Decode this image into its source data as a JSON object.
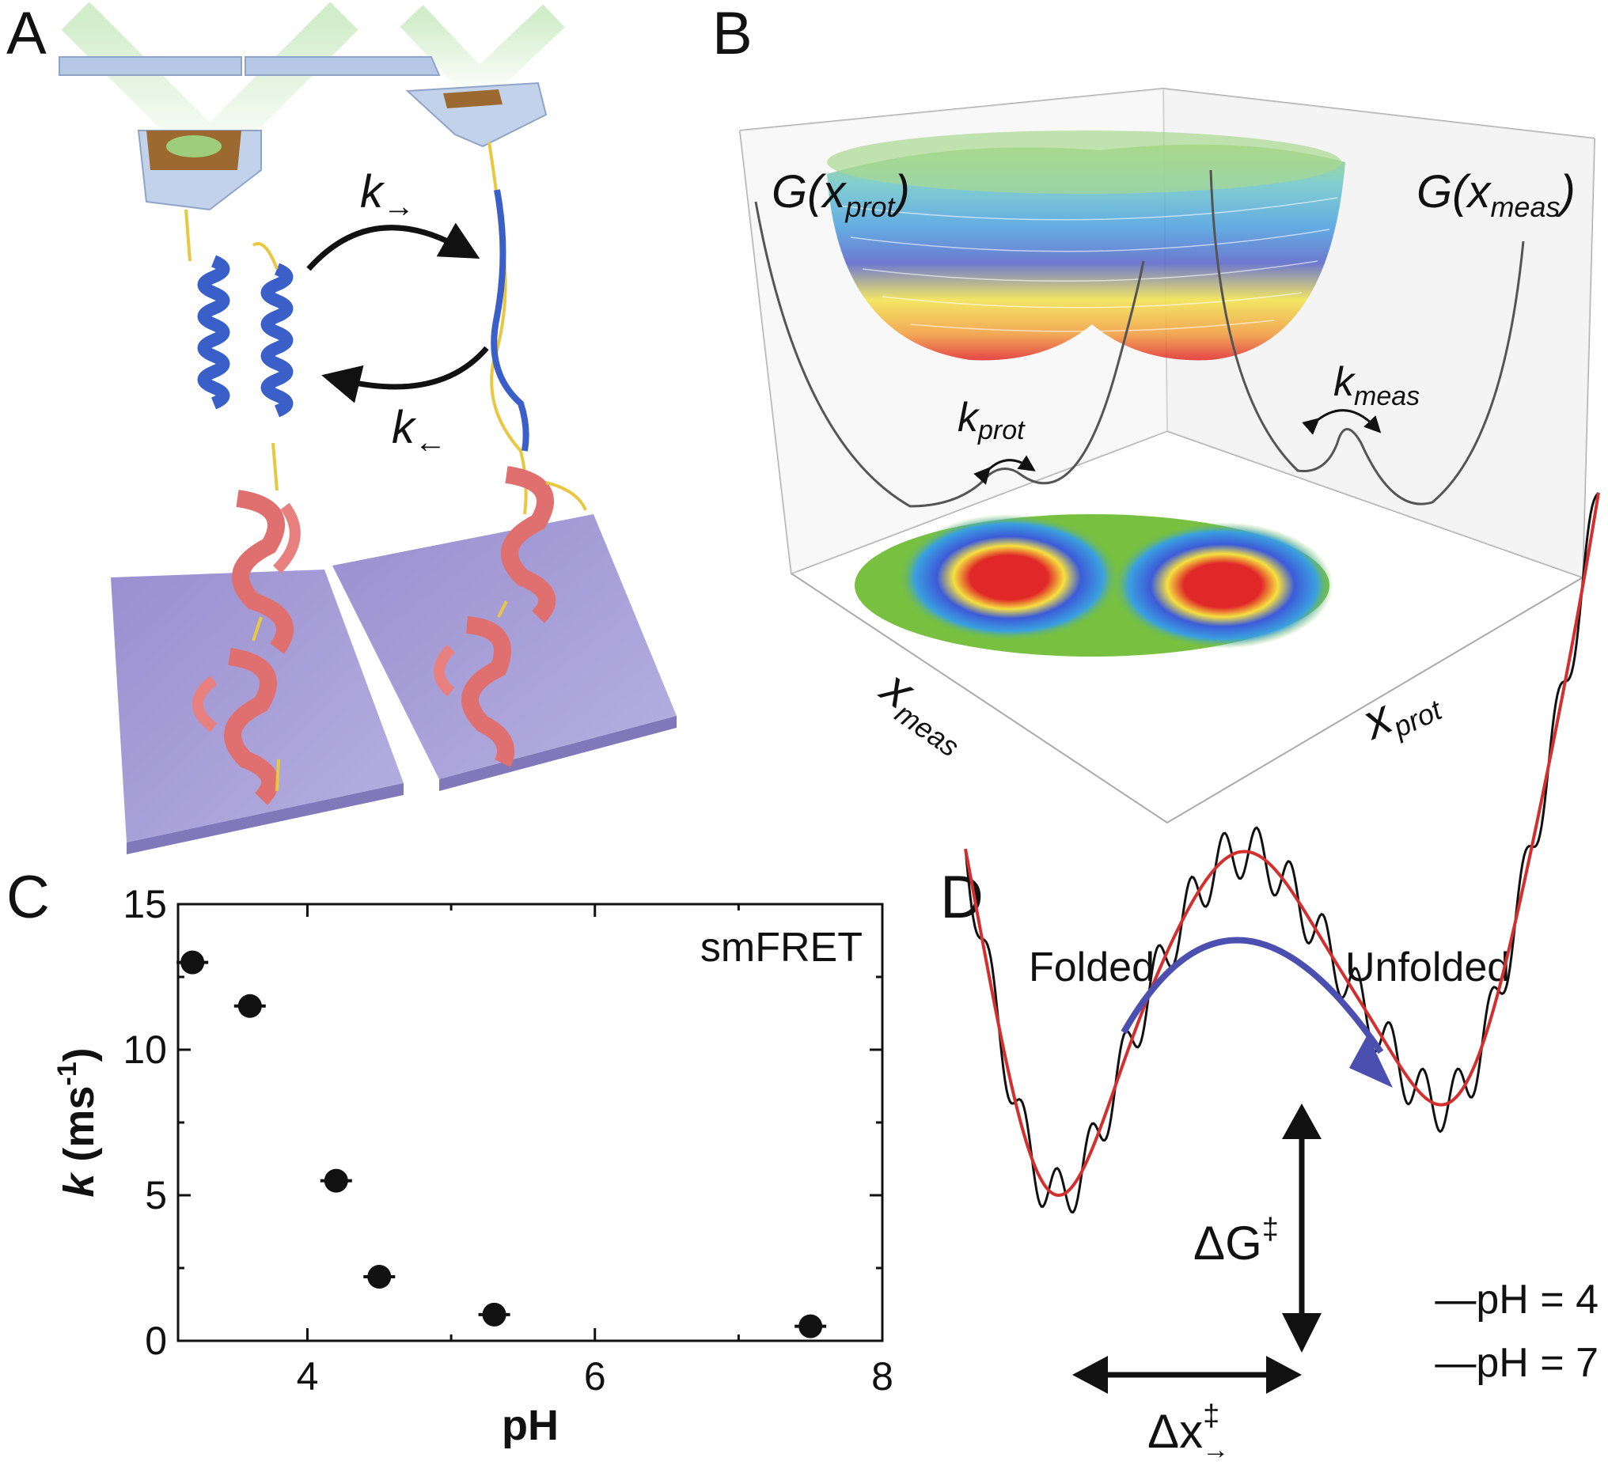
{
  "panels": {
    "a": {
      "letter": "A",
      "k_forward": "k",
      "k_forward_sub": "→",
      "k_backward": "k",
      "k_backward_sub": "←"
    },
    "b": {
      "letter": "B",
      "g_prot": "G(x",
      "g_prot_sub": "prot",
      "g_prot_close": ")",
      "g_meas": "G(x",
      "g_meas_sub": "meas",
      "g_meas_close": ")",
      "k_prot": "k",
      "k_prot_sub": "prot",
      "k_meas": "k",
      "k_meas_sub": "meas",
      "x_meas": "x",
      "x_meas_sub": "meas",
      "x_prot": "x",
      "x_prot_sub": "prot"
    },
    "c": {
      "letter": "C",
      "annotation": "smFRET"
    },
    "d": {
      "letter": "D",
      "folded": "Folded",
      "unfolded": "Unfolded",
      "dg": "ΔG",
      "dg_sup": "‡",
      "dx": "Δx",
      "dx_sup": "‡",
      "dx_sub": "→",
      "legend_red": "—pH = 4",
      "legend_black": "—pH = 7",
      "colors": {
        "red": "#d32f2f",
        "black": "#111111",
        "arrow": "#4a4fb0"
      }
    }
  },
  "chart_data": {
    "type": "scatter",
    "xlabel": "pH",
    "ylabel": "k (ms",
    "ylabel_sup": "-1",
    "ylabel_close": ")",
    "xlim": [
      3.1,
      8
    ],
    "ylim": [
      0,
      15
    ],
    "xticks": [
      4,
      6,
      8
    ],
    "yticks": [
      0,
      5,
      10,
      15
    ],
    "x": [
      3.2,
      3.6,
      4.2,
      4.5,
      5.3,
      7.5
    ],
    "y": [
      13.0,
      11.5,
      5.5,
      2.2,
      0.9,
      0.5
    ],
    "grid": false,
    "color": "#111111"
  }
}
